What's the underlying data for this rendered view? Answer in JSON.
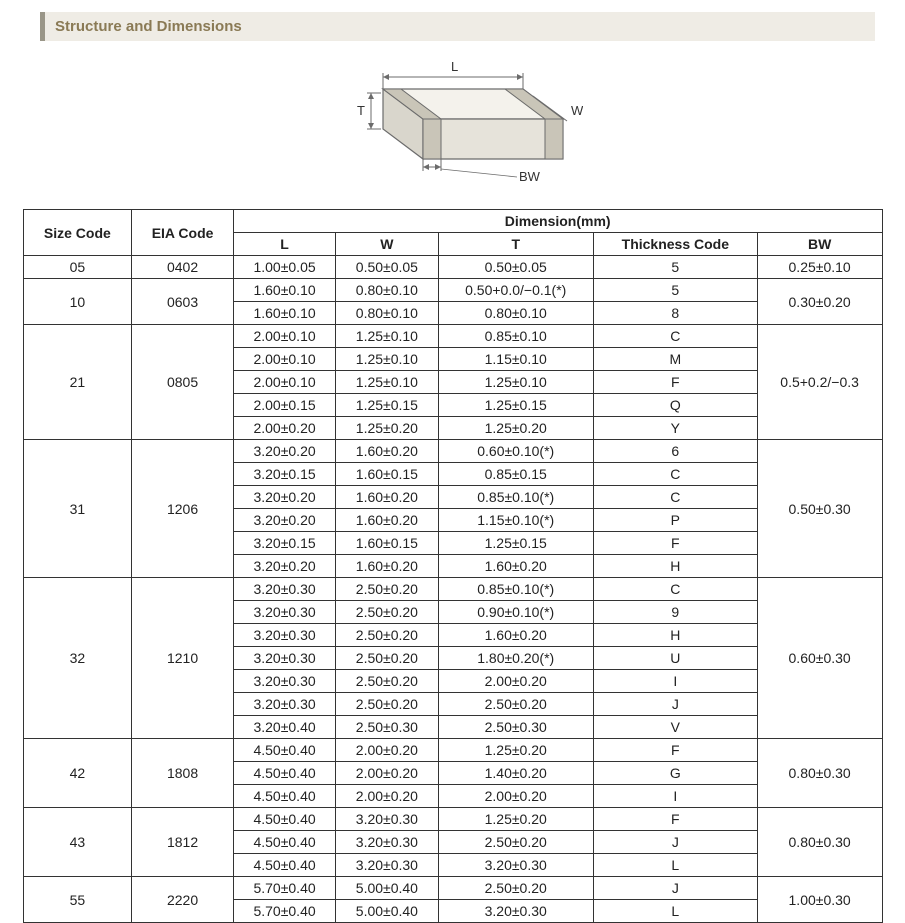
{
  "title": "Structure and Dimensions",
  "diagram": {
    "labels": {
      "L": "L",
      "W": "W",
      "T": "T",
      "BW": "BW"
    },
    "stroke": "#6b6b6b",
    "fill_top": "#f4f2ec",
    "fill_front": "#e6e3da",
    "fill_side": "#d9d6cc",
    "band_fill": "#c9c5b8"
  },
  "table": {
    "headers": {
      "size": "Size Code",
      "eia": "EIA Code",
      "dim": "Dimension(mm)",
      "L": "L",
      "W": "W",
      "T": "T",
      "thick": "Thickness  Code",
      "BW": "BW"
    },
    "groups": [
      {
        "size": "05",
        "eia": "0402",
        "bw": "0.25±0.10",
        "rows": [
          {
            "L": "1.00±0.05",
            "W": "0.50±0.05",
            "T": "0.50±0.05",
            "code": "5"
          }
        ]
      },
      {
        "size": "10",
        "eia": "0603",
        "bw": "0.30±0.20",
        "rows": [
          {
            "L": "1.60±0.10",
            "W": "0.80±0.10",
            "T": "0.50+0.0/−0.1(*)",
            "code": "5"
          },
          {
            "L": "1.60±0.10",
            "W": "0.80±0.10",
            "T": "0.80±0.10",
            "code": "8"
          }
        ]
      },
      {
        "size": "21",
        "eia": "0805",
        "bw": "0.5+0.2/−0.3",
        "rows": [
          {
            "L": "2.00±0.10",
            "W": "1.25±0.10",
            "T": "0.85±0.10",
            "code": "C"
          },
          {
            "L": "2.00±0.10",
            "W": "1.25±0.10",
            "T": "1.15±0.10",
            "code": "M"
          },
          {
            "L": "2.00±0.10",
            "W": "1.25±0.10",
            "T": "1.25±0.10",
            "code": "F"
          },
          {
            "L": "2.00±0.15",
            "W": "1.25±0.15",
            "T": "1.25±0.15",
            "code": "Q"
          },
          {
            "L": "2.00±0.20",
            "W": "1.25±0.20",
            "T": "1.25±0.20",
            "code": "Y"
          }
        ]
      },
      {
        "size": "31",
        "eia": "1206",
        "bw": "0.50±0.30",
        "rows": [
          {
            "L": "3.20±0.20",
            "W": "1.60±0.20",
            "T": "0.60±0.10(*)",
            "code": "6"
          },
          {
            "L": "3.20±0.15",
            "W": "1.60±0.15",
            "T": "0.85±0.15",
            "code": "C"
          },
          {
            "L": "3.20±0.20",
            "W": "1.60±0.20",
            "T": "0.85±0.10(*)",
            "code": "C"
          },
          {
            "L": "3.20±0.20",
            "W": "1.60±0.20",
            "T": "1.15±0.10(*)",
            "code": "P"
          },
          {
            "L": "3.20±0.15",
            "W": "1.60±0.15",
            "T": "1.25±0.15",
            "code": "F"
          },
          {
            "L": "3.20±0.20",
            "W": "1.60±0.20",
            "T": "1.60±0.20",
            "code": "H"
          }
        ]
      },
      {
        "size": "32",
        "eia": "1210",
        "bw": "0.60±0.30",
        "rows": [
          {
            "L": "3.20±0.30",
            "W": "2.50±0.20",
            "T": "0.85±0.10(*)",
            "code": "C"
          },
          {
            "L": "3.20±0.30",
            "W": "2.50±0.20",
            "T": "0.90±0.10(*)",
            "code": "9"
          },
          {
            "L": "3.20±0.30",
            "W": "2.50±0.20",
            "T": "1.60±0.20",
            "code": "H"
          },
          {
            "L": "3.20±0.30",
            "W": "2.50±0.20",
            "T": "1.80±0.20(*)",
            "code": "U"
          },
          {
            "L": "3.20±0.30",
            "W": "2.50±0.20",
            "T": "2.00±0.20",
            "code": "I"
          },
          {
            "L": "3.20±0.30",
            "W": "2.50±0.20",
            "T": "2.50±0.20",
            "code": "J"
          },
          {
            "L": "3.20±0.40",
            "W": "2.50±0.30",
            "T": "2.50±0.30",
            "code": "V"
          }
        ]
      },
      {
        "size": "42",
        "eia": "1808",
        "bw": "0.80±0.30",
        "rows": [
          {
            "L": "4.50±0.40",
            "W": "2.00±0.20",
            "T": "1.25±0.20",
            "code": "F"
          },
          {
            "L": "4.50±0.40",
            "W": "2.00±0.20",
            "T": "1.40±0.20",
            "code": "G"
          },
          {
            "L": "4.50±0.40",
            "W": "2.00±0.20",
            "T": "2.00±0.20",
            "code": "I"
          }
        ]
      },
      {
        "size": "43",
        "eia": "1812",
        "bw": "0.80±0.30",
        "rows": [
          {
            "L": "4.50±0.40",
            "W": "3.20±0.30",
            "T": "1.25±0.20",
            "code": "F"
          },
          {
            "L": "4.50±0.40",
            "W": "3.20±0.30",
            "T": "2.50±0.20",
            "code": "J"
          },
          {
            "L": "4.50±0.40",
            "W": "3.20±0.30",
            "T": "3.20±0.30",
            "code": "L"
          }
        ]
      },
      {
        "size": "55",
        "eia": "2220",
        "bw": "1.00±0.30",
        "rows": [
          {
            "L": "5.70±0.40",
            "W": "5.00±0.40",
            "T": "2.50±0.20",
            "code": "J"
          },
          {
            "L": "5.70±0.40",
            "W": "5.00±0.40",
            "T": "3.20±0.30",
            "code": "L"
          }
        ]
      }
    ]
  }
}
